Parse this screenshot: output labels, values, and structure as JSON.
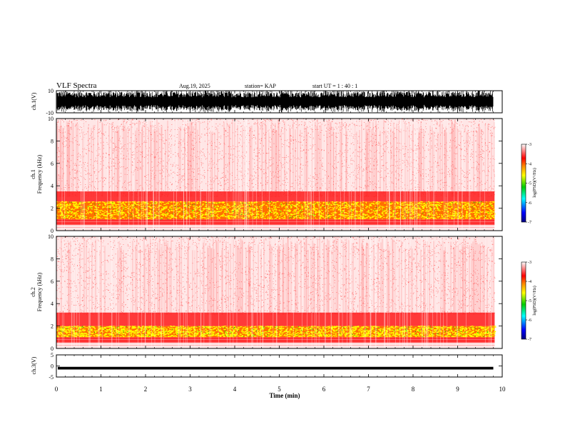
{
  "header": {
    "title": "VLF Spectra",
    "date": "Aug.19, 2025",
    "station": "station= KAP",
    "start_ut": "start  UT  =   1 : 40 : 1"
  },
  "chart_data": [
    {
      "type": "line",
      "panel": "ch1-waveform",
      "ylabel": "ch.1(V)",
      "ylim": [
        -10,
        10
      ],
      "yticks": [
        "10",
        "-10"
      ],
      "xlim": [
        0,
        10
      ],
      "description_values": {
        "amplitude_typical_V": [
          -8,
          8
        ]
      }
    },
    {
      "type": "heatmap",
      "panel": "ch1-spectrogram",
      "ylabel": "ch.1\nFrequency (kHz)",
      "ylabel_line1": "ch.1",
      "ylabel_line2": "Frequency  (kHz)",
      "ylim": [
        0,
        10
      ],
      "yticks": [
        "0",
        "2",
        "4",
        "6",
        "8",
        "10"
      ],
      "xlim": [
        0,
        9.83
      ],
      "bands_kHz": [
        {
          "from": 0.5,
          "to": 1.0,
          "level": -3.4
        },
        {
          "from": 1.0,
          "to": 2.6,
          "level": -4.4
        },
        {
          "from": 2.6,
          "to": 3.5,
          "level": -3.8
        },
        {
          "from": 3.5,
          "to": 10,
          "level": -3.0
        }
      ],
      "colorbar": {
        "label": "log(PSD)(V²/Hz)",
        "range": [
          -7,
          -3
        ],
        "ticks": [
          "-3",
          "-4",
          "-5",
          "-6",
          "-7"
        ]
      }
    },
    {
      "type": "heatmap",
      "panel": "ch2-spectrogram",
      "ylabel_line1": "ch.2",
      "ylabel_line2": "Frequency  (kHz)",
      "ylim": [
        0,
        10
      ],
      "yticks": [
        "0",
        "2",
        "4",
        "6",
        "8",
        "10"
      ],
      "xlim": [
        0,
        9.83
      ],
      "bands_kHz": [
        {
          "from": 0.5,
          "to": 1.0,
          "level": -3.4
        },
        {
          "from": 1.0,
          "to": 2.0,
          "level": -4.5
        },
        {
          "from": 2.0,
          "to": 3.2,
          "level": -3.7
        },
        {
          "from": 3.2,
          "to": 10,
          "level": -3.0
        }
      ],
      "colorbar": {
        "label": "log(PSD)(V²/Hz)",
        "range": [
          -7,
          -3
        ],
        "ticks": [
          "-3",
          "-4",
          "-5",
          "-6",
          "-7"
        ]
      }
    },
    {
      "type": "line",
      "panel": "ch3-waveform",
      "ylabel": "ch.3(V)",
      "ylim": [
        -5,
        5
      ],
      "yticks": [
        "5",
        "0",
        "-5"
      ],
      "xlim": [
        0,
        10
      ],
      "description_values": {
        "amplitude_typical_V": [
          -1.6,
          -0.4
        ]
      }
    }
  ],
  "xaxis": {
    "label": "Time  (min)",
    "ticks": [
      "0",
      "1",
      "2",
      "3",
      "4",
      "5",
      "6",
      "7",
      "8",
      "9",
      "10"
    ],
    "xlim": [
      0,
      10
    ]
  },
  "colors": {
    "red": "#ff0000",
    "orange": "#ff8800",
    "yellow": "#ffff00",
    "green": "#00cc00",
    "blue": "#0000ff",
    "navy": "#000080"
  }
}
